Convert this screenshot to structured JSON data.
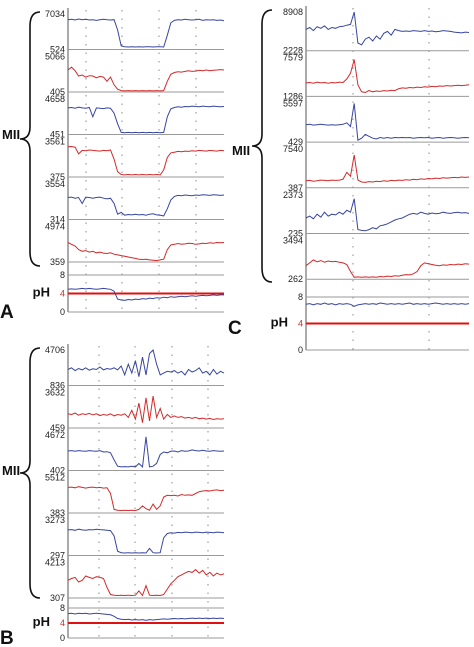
{
  "colors": {
    "blue": "#3845a0",
    "red": "#d42a2a",
    "axis": "#555555",
    "baseline": "#9a9a9a",
    "event": "#8a8a8a",
    "ph4_line": "#e01010",
    "text": "#111111"
  },
  "chart_data": [
    {
      "panel": "A",
      "type": "line",
      "group_label": "MII",
      "ph_label": "pH",
      "channels": [
        {
          "color": "blue",
          "top": "7034",
          "bottom": "524",
          "values": [
            0.84,
            0.85,
            0.83,
            0.86,
            0.84,
            0.85,
            0.83,
            0.84,
            0.82,
            0.84,
            0.85,
            0.84,
            0.83,
            0.84,
            0.55,
            0.1,
            0.08,
            0.07,
            0.08,
            0.07,
            0.08,
            0.07,
            0.08,
            0.08,
            0.07,
            0.08,
            0.08,
            0.07,
            0.4,
            0.75,
            0.82,
            0.84,
            0.83,
            0.85,
            0.84,
            0.83,
            0.84,
            0.85,
            0.82,
            0.84,
            0.83,
            0.84,
            0.82,
            0.83,
            0.81
          ]
        },
        {
          "color": "red",
          "top": "5066",
          "bottom": "405",
          "values": [
            0.62,
            0.7,
            0.6,
            0.45,
            0.48,
            0.42,
            0.46,
            0.45,
            0.4,
            0.44,
            0.42,
            0.3,
            0.42,
            0.2,
            0.08,
            0.04,
            0.03,
            0.04,
            0.03,
            0.04,
            0.03,
            0.04,
            0.03,
            0.04,
            0.03,
            0.04,
            0.03,
            0.04,
            0.3,
            0.5,
            0.55,
            0.57,
            0.56,
            0.58,
            0.6,
            0.58,
            0.59,
            0.61,
            0.6,
            0.62,
            0.6,
            0.61,
            0.62,
            0.63,
            0.62
          ]
        },
        {
          "color": "blue",
          "top": "4658",
          "bottom": "451",
          "values": [
            0.75,
            0.76,
            0.74,
            0.77,
            0.75,
            0.74,
            0.76,
            0.5,
            0.75,
            0.74,
            0.73,
            0.75,
            0.74,
            0.6,
            0.3,
            0.06,
            0.05,
            0.06,
            0.05,
            0.06,
            0.05,
            0.06,
            0.05,
            0.06,
            0.05,
            0.06,
            0.05,
            0.06,
            0.5,
            0.72,
            0.76,
            0.78,
            0.77,
            0.79,
            0.78,
            0.8,
            0.79,
            0.78,
            0.8,
            0.79,
            0.78,
            0.8,
            0.79,
            0.78,
            0.79
          ]
        },
        {
          "color": "red",
          "top": "3561",
          "bottom": "375",
          "values": [
            0.85,
            0.86,
            0.84,
            0.65,
            0.75,
            0.74,
            0.76,
            0.75,
            0.74,
            0.73,
            0.75,
            0.74,
            0.76,
            0.5,
            0.15,
            0.07,
            0.06,
            0.07,
            0.06,
            0.07,
            0.06,
            0.07,
            0.06,
            0.07,
            0.06,
            0.07,
            0.06,
            0.2,
            0.55,
            0.68,
            0.7,
            0.72,
            0.71,
            0.73,
            0.72,
            0.74,
            0.73,
            0.75,
            0.74,
            0.73,
            0.75,
            0.74,
            0.73,
            0.75,
            0.74
          ]
        },
        {
          "color": "blue",
          "top": "3554",
          "bottom": "314",
          "values": [
            0.62,
            0.63,
            0.6,
            0.62,
            0.45,
            0.63,
            0.62,
            0.6,
            0.62,
            0.63,
            0.6,
            0.58,
            0.6,
            0.45,
            0.15,
            0.2,
            0.12,
            0.14,
            0.13,
            0.15,
            0.13,
            0.14,
            0.12,
            0.15,
            0.16,
            0.13,
            0.12,
            0.1,
            0.3,
            0.55,
            0.65,
            0.68,
            0.67,
            0.69,
            0.68,
            0.67,
            0.69,
            0.68,
            0.7,
            0.69,
            0.68,
            0.7,
            0.69,
            0.68,
            0.69
          ]
        },
        {
          "color": "red",
          "top": "4974",
          "bottom": "359",
          "values": [
            0.55,
            0.5,
            0.45,
            0.35,
            0.3,
            0.32,
            0.28,
            0.3,
            0.26,
            0.28,
            0.25,
            0.24,
            0.26,
            0.22,
            0.2,
            0.18,
            0.16,
            0.14,
            0.12,
            0.1,
            0.08,
            0.07,
            0.08,
            0.06,
            0.05,
            0.04,
            0.06,
            0.08,
            0.35,
            0.48,
            0.5,
            0.52,
            0.5,
            0.51,
            0.53,
            0.52,
            0.5,
            0.51,
            0.53,
            0.52,
            0.54,
            0.53,
            0.55,
            0.54,
            0.55
          ]
        }
      ],
      "ph": {
        "ticks": [
          "8",
          "4",
          "0"
        ],
        "values": [
          4.9,
          5.0,
          4.9,
          5.0,
          5.1,
          5.0,
          5.1,
          5.0,
          4.9,
          5.0,
          5.1,
          5.0,
          4.9,
          4.5,
          2.8,
          2.6,
          2.5,
          2.7,
          2.6,
          2.8,
          2.7,
          2.9,
          2.8,
          3.0,
          2.9,
          3.1,
          3.0,
          3.2,
          3.1,
          3.3,
          3.2,
          3.3,
          3.4,
          3.3,
          3.4,
          3.5,
          3.4,
          3.5,
          3.6,
          3.5,
          3.6,
          3.7,
          3.6,
          3.7,
          3.7
        ]
      }
    },
    {
      "panel": "B",
      "type": "line",
      "group_label": "MII",
      "ph_label": "pH",
      "channels": [
        {
          "color": "blue",
          "top": "4706",
          "bottom": "836",
          "values": [
            0.45,
            0.5,
            0.42,
            0.48,
            0.44,
            0.5,
            0.43,
            0.47,
            0.45,
            0.52,
            0.44,
            0.48,
            0.46,
            0.5,
            0.44,
            0.55,
            0.3,
            0.6,
            0.35,
            0.7,
            0.25,
            0.8,
            0.3,
            0.9,
            1.0,
            0.6,
            0.3,
            0.35,
            0.4,
            0.38,
            0.42,
            0.35,
            0.4,
            0.3,
            0.45,
            0.38,
            0.42,
            0.5,
            0.35,
            0.4,
            0.3,
            0.45,
            0.32,
            0.4,
            0.35
          ]
        },
        {
          "color": "red",
          "top": "3632",
          "bottom": "459",
          "values": [
            0.4,
            0.38,
            0.42,
            0.36,
            0.4,
            0.38,
            0.41,
            0.37,
            0.4,
            0.35,
            0.38,
            0.36,
            0.4,
            0.34,
            0.38,
            0.36,
            0.4,
            0.3,
            0.5,
            0.25,
            0.7,
            0.15,
            0.85,
            0.2,
            0.9,
            0.3,
            0.55,
            0.25,
            0.38,
            0.3,
            0.34,
            0.3,
            0.32,
            0.28,
            0.3,
            0.27,
            0.3,
            0.26,
            0.28,
            0.25,
            0.27,
            0.24,
            0.26,
            0.25,
            0.26
          ]
        },
        {
          "color": "blue",
          "top": "4672",
          "bottom": "402",
          "values": [
            0.55,
            0.56,
            0.54,
            0.56,
            0.55,
            0.54,
            0.56,
            0.55,
            0.54,
            0.56,
            0.52,
            0.53,
            0.5,
            0.3,
            0.12,
            0.1,
            0.11,
            0.1,
            0.12,
            0.1,
            0.2,
            0.1,
            0.95,
            0.1,
            0.12,
            0.2,
            0.45,
            0.52,
            0.5,
            0.54,
            0.55,
            0.52,
            0.56,
            0.54,
            0.55,
            0.58,
            0.56,
            0.55,
            0.57,
            0.55,
            0.54,
            0.56,
            0.55,
            0.54,
            0.55
          ]
        },
        {
          "color": "red",
          "top": "5512",
          "bottom": "383",
          "values": [
            0.72,
            0.73,
            0.71,
            0.74,
            0.72,
            0.7,
            0.72,
            0.73,
            0.71,
            0.72,
            0.7,
            0.71,
            0.55,
            0.1,
            0.08,
            0.07,
            0.08,
            0.07,
            0.08,
            0.07,
            0.1,
            0.2,
            0.12,
            0.08,
            0.25,
            0.1,
            0.2,
            0.45,
            0.5,
            0.49,
            0.5,
            0.48,
            0.52,
            0.5,
            0.51,
            0.5,
            0.55,
            0.6,
            0.62,
            0.63,
            0.62,
            0.64,
            0.65,
            0.63,
            0.64
          ]
        },
        {
          "color": "blue",
          "top": "3273",
          "bottom": "297",
          "values": [
            0.72,
            0.73,
            0.71,
            0.74,
            0.72,
            0.71,
            0.73,
            0.72,
            0.74,
            0.73,
            0.72,
            0.71,
            0.7,
            0.55,
            0.12,
            0.08,
            0.07,
            0.08,
            0.07,
            0.08,
            0.07,
            0.08,
            0.07,
            0.2,
            0.08,
            0.07,
            0.08,
            0.5,
            0.62,
            0.64,
            0.63,
            0.65,
            0.64,
            0.66,
            0.65,
            0.64,
            0.66,
            0.65,
            0.64,
            0.66,
            0.65,
            0.64,
            0.66,
            0.65,
            0.64
          ]
        },
        {
          "color": "red",
          "top": "4213",
          "bottom": "307",
          "values": [
            0.5,
            0.55,
            0.58,
            0.45,
            0.5,
            0.62,
            0.58,
            0.55,
            0.6,
            0.58,
            0.55,
            0.3,
            0.1,
            0.08,
            0.07,
            0.08,
            0.07,
            0.08,
            0.07,
            0.08,
            0.2,
            0.07,
            0.35,
            0.08,
            0.07,
            0.08,
            0.07,
            0.1,
            0.25,
            0.4,
            0.5,
            0.6,
            0.65,
            0.7,
            0.75,
            0.72,
            0.8,
            0.7,
            0.78,
            0.65,
            0.72,
            0.62,
            0.7,
            0.65,
            0.68
          ]
        }
      ],
      "ph": {
        "ticks": [
          "8",
          "4",
          "0"
        ],
        "values": [
          6.5,
          6.6,
          6.4,
          6.6,
          6.5,
          6.6,
          6.4,
          6.5,
          6.6,
          6.5,
          6.4,
          6.3,
          6.2,
          5.8,
          5.2,
          5.0,
          4.9,
          5.0,
          4.8,
          4.9,
          4.8,
          4.9,
          4.7,
          4.9,
          4.8,
          4.9,
          5.0,
          5.1,
          5.0,
          5.1,
          5.2,
          5.1,
          5.2,
          5.1,
          5.2,
          5.3,
          5.2,
          5.3,
          5.2,
          5.3,
          5.2,
          5.3,
          5.2,
          5.3,
          5.2
        ]
      }
    },
    {
      "panel": "C",
      "type": "line",
      "group_label": "MII",
      "ph_label": "pH",
      "channels": [
        {
          "color": "blue",
          "top": "8908",
          "bottom": "2228",
          "values": [
            0.55,
            0.6,
            0.52,
            0.62,
            0.58,
            0.64,
            0.55,
            0.6,
            0.58,
            0.62,
            0.63,
            0.66,
            0.68,
            1.0,
            0.2,
            0.15,
            0.3,
            0.35,
            0.25,
            0.38,
            0.3,
            0.45,
            0.5,
            0.4,
            0.55,
            0.52,
            0.5,
            0.51,
            0.5,
            0.52,
            0.51,
            0.5,
            0.52,
            0.5,
            0.51,
            0.49,
            0.5,
            0.52,
            0.51,
            0.5,
            0.48,
            0.47,
            0.46,
            0.48,
            0.47
          ]
        },
        {
          "color": "red",
          "top": "7579",
          "bottom": "1286",
          "values": [
            0.35,
            0.36,
            0.34,
            0.37,
            0.35,
            0.36,
            0.34,
            0.36,
            0.35,
            0.37,
            0.36,
            0.45,
            0.6,
            0.95,
            0.3,
            0.12,
            0.1,
            0.15,
            0.12,
            0.14,
            0.13,
            0.15,
            0.14,
            0.16,
            0.15,
            0.2,
            0.22,
            0.21,
            0.23,
            0.22,
            0.24,
            0.23,
            0.25,
            0.24,
            0.26,
            0.25,
            0.27,
            0.26,
            0.28,
            0.27,
            0.28,
            0.29,
            0.28,
            0.29,
            0.3
          ]
        },
        {
          "color": "blue",
          "top": "5597",
          "bottom": "429",
          "values": [
            0.45,
            0.46,
            0.44,
            0.45,
            0.46,
            0.45,
            0.44,
            0.45,
            0.44,
            0.45,
            0.46,
            0.5,
            0.4,
            1.0,
            0.05,
            0.1,
            0.2,
            0.15,
            0.1,
            0.08,
            0.12,
            0.1,
            0.12,
            0.1,
            0.12,
            0.11,
            0.12,
            0.11,
            0.12,
            0.1,
            0.11,
            0.12,
            0.11,
            0.12,
            0.1,
            0.11,
            0.12,
            0.1,
            0.11,
            0.12,
            0.11,
            0.1,
            0.11,
            0.12,
            0.11
          ]
        },
        {
          "color": "red",
          "top": "7540",
          "bottom": "387",
          "values": [
            0.18,
            0.19,
            0.17,
            0.18,
            0.2,
            0.19,
            0.18,
            0.2,
            0.19,
            0.2,
            0.22,
            0.4,
            0.3,
            0.85,
            0.2,
            0.15,
            0.14,
            0.16,
            0.15,
            0.17,
            0.16,
            0.18,
            0.17,
            0.19,
            0.18,
            0.2,
            0.19,
            0.21,
            0.2,
            0.22,
            0.21,
            0.23,
            0.22,
            0.24,
            0.23,
            0.25,
            0.24,
            0.26,
            0.25,
            0.26,
            0.27,
            0.26,
            0.28,
            0.27,
            0.28
          ]
        },
        {
          "color": "blue",
          "top": "2373",
          "bottom": "235",
          "values": [
            0.4,
            0.45,
            0.38,
            0.5,
            0.42,
            0.55,
            0.45,
            0.5,
            0.48,
            0.55,
            0.5,
            0.6,
            0.55,
            0.9,
            0.1,
            0.08,
            0.07,
            0.1,
            0.15,
            0.12,
            0.2,
            0.22,
            0.25,
            0.3,
            0.35,
            0.38,
            0.4,
            0.45,
            0.5,
            0.52,
            0.5,
            0.55,
            0.52,
            0.5,
            0.53,
            0.51,
            0.52,
            0.55,
            0.53,
            0.52,
            0.54,
            0.55,
            0.53,
            0.54,
            0.52
          ]
        },
        {
          "color": "red",
          "top": "3494",
          "bottom": "262",
          "values": [
            0.35,
            0.42,
            0.5,
            0.45,
            0.48,
            0.44,
            0.47,
            0.45,
            0.46,
            0.44,
            0.42,
            0.38,
            0.2,
            0.05,
            0.06,
            0.05,
            0.06,
            0.05,
            0.06,
            0.05,
            0.07,
            0.06,
            0.08,
            0.07,
            0.09,
            0.08,
            0.1,
            0.12,
            0.11,
            0.14,
            0.2,
            0.35,
            0.42,
            0.4,
            0.38,
            0.36,
            0.35,
            0.37,
            0.36,
            0.38,
            0.37,
            0.39,
            0.38,
            0.4,
            0.39
          ]
        }
      ],
      "ph": {
        "ticks": [
          "8",
          "4",
          "0"
        ],
        "values": [
          6.9,
          7.0,
          6.8,
          7.0,
          6.9,
          7.1,
          6.9,
          7.0,
          6.8,
          7.0,
          6.9,
          7.0,
          6.9,
          6.6,
          6.8,
          6.9,
          7.0,
          6.9,
          7.0,
          6.9,
          7.1,
          7.0,
          6.9,
          7.0,
          6.9,
          7.0,
          6.9,
          7.0,
          7.1,
          6.9,
          7.0,
          6.9,
          7.0,
          6.9,
          7.0,
          7.1,
          7.0,
          6.9,
          7.0,
          6.9,
          7.0,
          6.9,
          7.0,
          6.9,
          7.0
        ]
      }
    }
  ]
}
